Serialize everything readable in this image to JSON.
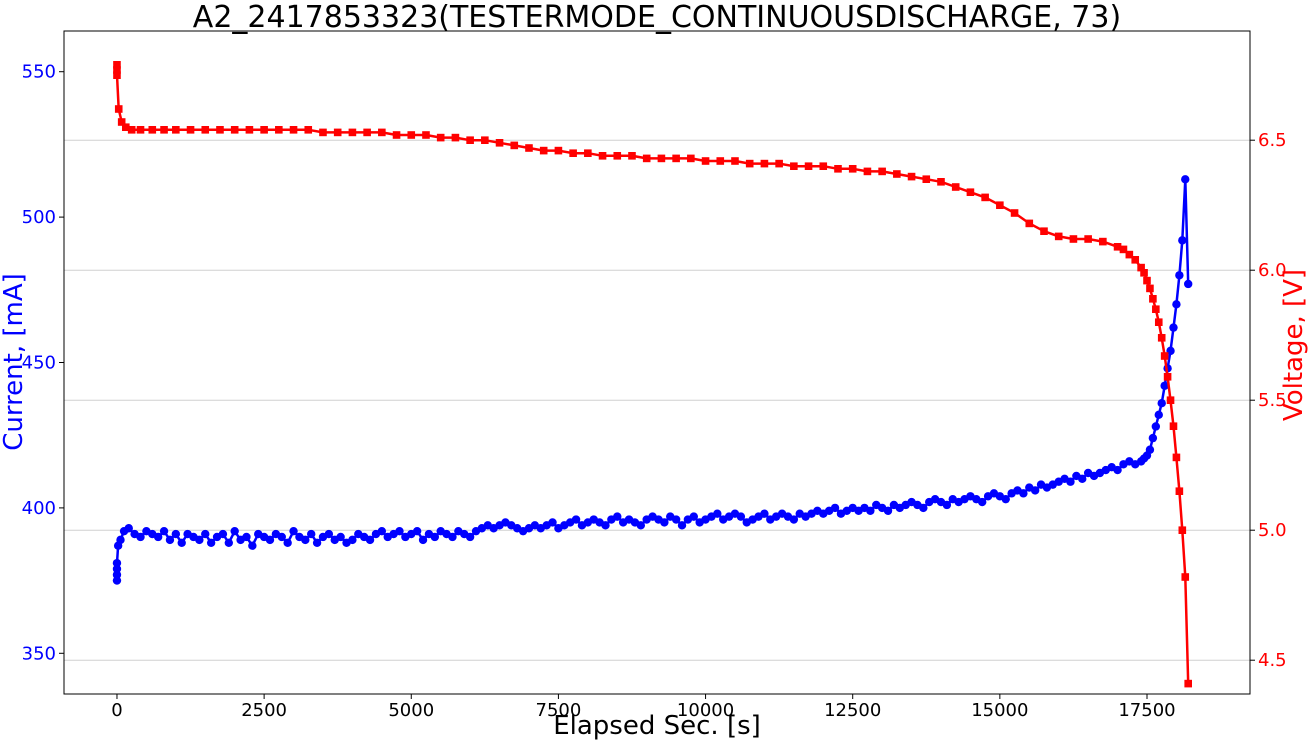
{
  "chart_data": {
    "type": "line",
    "title": "A2_2417853323(TESTERMODE_CONTINUOUSDISCHARGE, 73)",
    "xlabel": "Elapsed Sec. [s]",
    "ylabel_left": "Current, [mA]",
    "ylabel_right": "Voltage, [V]",
    "xlim": [
      -900,
      19250
    ],
    "ylim_left": [
      336,
      564
    ],
    "ylim_right": [
      4.37,
      6.92
    ],
    "x_ticks": [
      0,
      2500,
      5000,
      7500,
      10000,
      12500,
      15000,
      17500
    ],
    "x_tick_labels": [
      "0",
      "2500",
      "5000",
      "7500",
      "10000",
      "12500",
      "15000",
      "17500"
    ],
    "y_left_ticks": [
      350,
      400,
      450,
      500,
      550
    ],
    "y_left_tick_labels": [
      "350",
      "400",
      "450",
      "500",
      "550"
    ],
    "y_right_ticks": [
      4.5,
      5.0,
      5.5,
      6.0,
      6.5
    ],
    "y_right_tick_labels": [
      "4.5",
      "5.0",
      "5.5",
      "6.0",
      "6.5"
    ],
    "grid": "horizontal (right axis)",
    "colors": {
      "current": "#0000ff",
      "voltage": "#ff0000"
    },
    "series": [
      {
        "axis": "left",
        "marker": "circle",
        "color": "#0000ff",
        "x": [
          0,
          0,
          0,
          0,
          20,
          60,
          120,
          200,
          300,
          400,
          500,
          600,
          700,
          800,
          900,
          1000,
          1100,
          1200,
          1300,
          1400,
          1500,
          1600,
          1700,
          1800,
          1900,
          2000,
          2100,
          2200,
          2300,
          2400,
          2500,
          2600,
          2700,
          2800,
          2900,
          3000,
          3100,
          3200,
          3300,
          3400,
          3500,
          3600,
          3700,
          3800,
          3900,
          4000,
          4100,
          4200,
          4300,
          4400,
          4500,
          4600,
          4700,
          4800,
          4900,
          5000,
          5100,
          5200,
          5300,
          5400,
          5500,
          5600,
          5700,
          5800,
          5900,
          6000,
          6100,
          6200,
          6300,
          6400,
          6500,
          6600,
          6700,
          6800,
          6900,
          7000,
          7100,
          7200,
          7300,
          7400,
          7500,
          7600,
          7700,
          7800,
          7900,
          8000,
          8100,
          8200,
          8300,
          8400,
          8500,
          8600,
          8700,
          8800,
          8900,
          9000,
          9100,
          9200,
          9300,
          9400,
          9500,
          9600,
          9700,
          9800,
          9900,
          10000,
          10100,
          10200,
          10300,
          10400,
          10500,
          10600,
          10700,
          10800,
          10900,
          11000,
          11100,
          11200,
          11300,
          11400,
          11500,
          11600,
          11700,
          11800,
          11900,
          12000,
          12100,
          12200,
          12300,
          12400,
          12500,
          12600,
          12700,
          12800,
          12900,
          13000,
          13100,
          13200,
          13300,
          13400,
          13500,
          13600,
          13700,
          13800,
          13900,
          14000,
          14100,
          14200,
          14300,
          14400,
          14500,
          14600,
          14700,
          14800,
          14900,
          15000,
          15100,
          15200,
          15300,
          15400,
          15500,
          15600,
          15700,
          15800,
          15900,
          16000,
          16100,
          16200,
          16300,
          16400,
          16500,
          16600,
          16700,
          16800,
          16900,
          17000,
          17100,
          17200,
          17300,
          17400,
          17450,
          17500,
          17550,
          17600,
          17650,
          17700,
          17750,
          17800,
          17850,
          17900,
          17950,
          18000,
          18050,
          18100,
          18150,
          18200
        ],
        "values": [
          375,
          377,
          379,
          381,
          387,
          389,
          392,
          393,
          391,
          390,
          392,
          391,
          390,
          392,
          389,
          391,
          388,
          391,
          390,
          389,
          391,
          388,
          390,
          391,
          388,
          392,
          389,
          390,
          387,
          391,
          390,
          389,
          391,
          390,
          388,
          392,
          390,
          389,
          391,
          388,
          390,
          391,
          389,
          390,
          388,
          389,
          391,
          390,
          389,
          391,
          392,
          390,
          391,
          392,
          390,
          391,
          392,
          389,
          391,
          390,
          392,
          391,
          390,
          392,
          391,
          390,
          392,
          393,
          394,
          393,
          394,
          395,
          394,
          393,
          392,
          393,
          394,
          393,
          394,
          395,
          393,
          394,
          395,
          396,
          394,
          395,
          396,
          395,
          394,
          396,
          397,
          395,
          396,
          395,
          394,
          396,
          397,
          396,
          395,
          397,
          396,
          394,
          396,
          397,
          395,
          396,
          397,
          398,
          396,
          397,
          398,
          397,
          395,
          396,
          397,
          398,
          396,
          397,
          398,
          397,
          396,
          398,
          397,
          398,
          399,
          398,
          399,
          400,
          398,
          399,
          400,
          399,
          400,
          399,
          401,
          400,
          399,
          401,
          400,
          401,
          402,
          401,
          400,
          402,
          403,
          402,
          401,
          403,
          402,
          403,
          404,
          403,
          402,
          404,
          405,
          404,
          403,
          405,
          406,
          405,
          407,
          406,
          408,
          407,
          408,
          409,
          410,
          409,
          411,
          410,
          412,
          411,
          412,
          413,
          414,
          413,
          415,
          416,
          415,
          416,
          417,
          418,
          420,
          424,
          428,
          432,
          436,
          442,
          448,
          454,
          462,
          470,
          480,
          492,
          513,
          477
        ]
      },
      {
        "axis": "right",
        "marker": "square",
        "color": "#ff0000",
        "x": [
          0,
          0,
          0,
          30,
          80,
          150,
          250,
          400,
          600,
          800,
          1000,
          1250,
          1500,
          1750,
          2000,
          2250,
          2500,
          2750,
          3000,
          3250,
          3500,
          3750,
          4000,
          4250,
          4500,
          4750,
          5000,
          5250,
          5500,
          5750,
          6000,
          6250,
          6500,
          6750,
          7000,
          7250,
          7500,
          7750,
          8000,
          8250,
          8500,
          8750,
          9000,
          9250,
          9500,
          9750,
          10000,
          10250,
          10500,
          10750,
          11000,
          11250,
          11500,
          11750,
          12000,
          12250,
          12500,
          12750,
          13000,
          13250,
          13500,
          13750,
          14000,
          14250,
          14500,
          14750,
          15000,
          15250,
          15500,
          15750,
          16000,
          16250,
          16500,
          16750,
          17000,
          17100,
          17200,
          17300,
          17400,
          17450,
          17500,
          17550,
          17600,
          17650,
          17700,
          17750,
          17800,
          17850,
          17900,
          17950,
          18000,
          18050,
          18100,
          18150,
          18200
        ],
        "values": [
          6.77,
          6.79,
          6.75,
          6.62,
          6.57,
          6.55,
          6.54,
          6.54,
          6.54,
          6.54,
          6.54,
          6.54,
          6.54,
          6.54,
          6.54,
          6.54,
          6.54,
          6.54,
          6.54,
          6.54,
          6.53,
          6.53,
          6.53,
          6.53,
          6.53,
          6.52,
          6.52,
          6.52,
          6.51,
          6.51,
          6.5,
          6.5,
          6.49,
          6.48,
          6.47,
          6.46,
          6.46,
          6.45,
          6.45,
          6.44,
          6.44,
          6.44,
          6.43,
          6.43,
          6.43,
          6.43,
          6.42,
          6.42,
          6.42,
          6.41,
          6.41,
          6.41,
          6.4,
          6.4,
          6.4,
          6.39,
          6.39,
          6.38,
          6.38,
          6.37,
          6.36,
          6.35,
          6.34,
          6.32,
          6.3,
          6.28,
          6.25,
          6.22,
          6.18,
          6.15,
          6.13,
          6.12,
          6.12,
          6.11,
          6.09,
          6.08,
          6.06,
          6.04,
          6.01,
          5.99,
          5.96,
          5.93,
          5.89,
          5.85,
          5.8,
          5.74,
          5.67,
          5.59,
          5.5,
          5.4,
          5.28,
          5.15,
          5.0,
          4.82,
          4.41
        ]
      }
    ]
  }
}
